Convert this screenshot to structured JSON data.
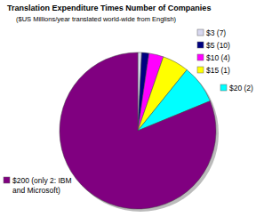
{
  "chart_data": {
    "type": "pie",
    "title": "Translation Expenditure Times Number of Companies",
    "subtitle": "($US Millions/year translated world-wide from English)",
    "categories": [
      "$3 (7)",
      "$5 (10)",
      "$10 (4)",
      "$15 (1)",
      "$20 (2)",
      "$200 (only 2: IBM and Microsoft)"
    ],
    "values": [
      0.8,
      1.5,
      3,
      5.5,
      8,
      81.2
    ],
    "colors": [
      "#d8d8f0",
      "#000080",
      "#ff00ff",
      "#ffff00",
      "#00ffff",
      "#800080"
    ]
  }
}
